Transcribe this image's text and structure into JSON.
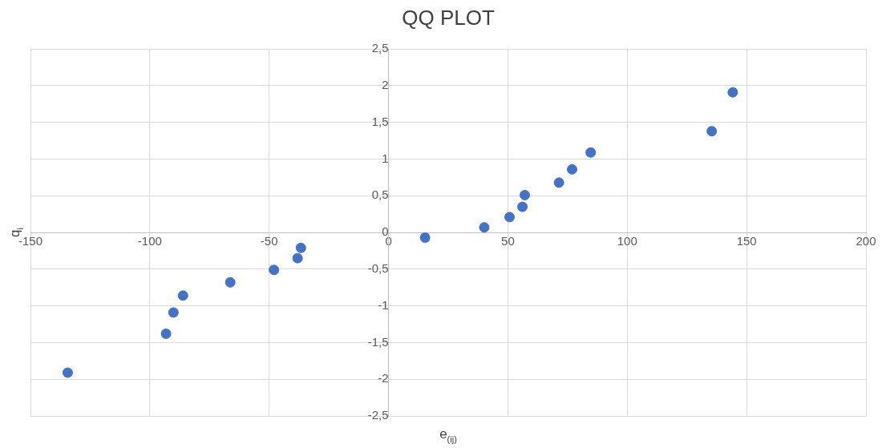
{
  "chart_data": {
    "type": "scatter",
    "title": "QQ PLOT",
    "xlabel": "e$_{(ij)}$",
    "ylabel": "q$_{i}$",
    "series": [
      {
        "color": "#4472c4",
        "x": [
          -134.4,
          -93.2,
          -90.1,
          -86.1,
          -66.3,
          -48,
          -38.1,
          -36.7,
          15.3,
          40.1,
          50.7,
          56.1,
          57.1,
          71.4,
          76.9,
          84.7,
          135.4,
          144.2
        ],
        "values": [
          -1.91,
          -1.38,
          -1.09,
          -0.86,
          -0.68,
          -0.51,
          -0.35,
          -0.21,
          -0.07,
          0.07,
          0.21,
          0.35,
          0.51,
          0.68,
          0.86,
          1.09,
          1.38,
          1.91
        ]
      }
    ],
    "xlim": [
      -150,
      200
    ],
    "xticks": [
      -150,
      -100,
      -50,
      0,
      50,
      100,
      150,
      200
    ],
    "ylim": [
      -2.5,
      2.5
    ],
    "yticks": [
      {
        "value": -2.5,
        "label": "-2,5"
      },
      -2,
      {
        "value": -1.5,
        "label": "-1,5"
      },
      -1,
      {
        "value": -0.5,
        "label": "-0,5"
      },
      0,
      {
        "value": 0.5,
        "label": "0,5"
      },
      1,
      {
        "value": 1.5,
        "label": "1,5"
      },
      2,
      {
        "value": 2.5,
        "label": "2,5"
      }
    ],
    "grid": true,
    "marker": "circle",
    "legend": false
  }
}
